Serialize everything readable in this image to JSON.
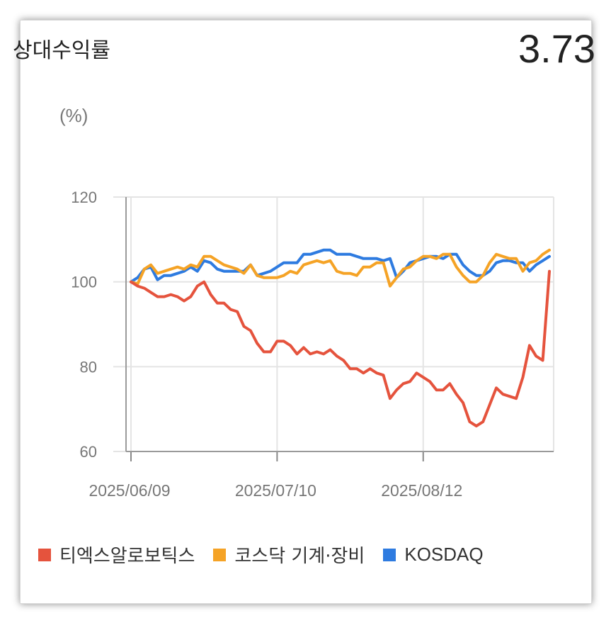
{
  "header": {
    "title": "상대수익률",
    "value": "3.73"
  },
  "chart_data": {
    "type": "line",
    "unit_label": "(%)",
    "ylim": [
      60,
      120
    ],
    "yticks": [
      60,
      80,
      100,
      120
    ],
    "x_tick_labels": [
      "2025/06/09",
      "2025/07/10",
      "2025/08/12"
    ],
    "x_tick_index": [
      0,
      22,
      44
    ],
    "grid": true,
    "legend_position": "bottom",
    "series": [
      {
        "name": "티엑스알로보틱스",
        "color": "#e5533d",
        "values": [
          100,
          99,
          98.5,
          97.5,
          96.5,
          96.5,
          97,
          96.5,
          95.5,
          96.5,
          99,
          100,
          97,
          95,
          95,
          93.5,
          93,
          89.5,
          88.5,
          85.5,
          83.5,
          83.5,
          86,
          86,
          85,
          83,
          84.5,
          83,
          83.5,
          83,
          84,
          82.5,
          81.5,
          79.5,
          79.5,
          78.5,
          79.5,
          78.5,
          78,
          72.5,
          74.5,
          76,
          76.5,
          78.5,
          77.5,
          76.5,
          74.5,
          74.5,
          76,
          73.5,
          71.5,
          67,
          66,
          67,
          71,
          75,
          73.5,
          73,
          72.5,
          77.5,
          85,
          82.5,
          81.5,
          102.5
        ]
      },
      {
        "name": "코스닥 기계·장비",
        "color": "#f5a326",
        "values": [
          100,
          99.5,
          103,
          104,
          102,
          102.5,
          103,
          103.5,
          103,
          104,
          103.5,
          106,
          106,
          105,
          104,
          103.5,
          103,
          102,
          104,
          101.5,
          101,
          101,
          101,
          101.5,
          102.5,
          102,
          104,
          104.5,
          105,
          104.5,
          105,
          102.5,
          102,
          102,
          101.5,
          103.5,
          103.5,
          104.5,
          104.5,
          99,
          101,
          103,
          103.5,
          105,
          106,
          106,
          105.5,
          106.5,
          106.5,
          103.5,
          101.5,
          100,
          100,
          101.5,
          104.5,
          106.5,
          106,
          105.5,
          105.5,
          102.5,
          104.5,
          105,
          106.5,
          107.5
        ]
      },
      {
        "name": "KOSDAQ",
        "color": "#2e7be0",
        "values": [
          100,
          101,
          103,
          103.5,
          100.5,
          101.5,
          101.5,
          102,
          102.5,
          103.5,
          102.5,
          105,
          104.5,
          103,
          102.5,
          102.5,
          102.5,
          102.5,
          104,
          101.5,
          102,
          102.5,
          103.5,
          104.5,
          104.5,
          104.5,
          106.5,
          106.5,
          107,
          107.5,
          107.5,
          106.5,
          106.5,
          106.5,
          106,
          105.5,
          105.5,
          105.5,
          105,
          105.5,
          101,
          102.5,
          104.5,
          105,
          105.5,
          106,
          106,
          105.5,
          106.5,
          106.5,
          104,
          102.5,
          101.5,
          101.5,
          102.5,
          104.5,
          105,
          105,
          104.5,
          104.5,
          102.5,
          104,
          105,
          106
        ]
      }
    ]
  }
}
